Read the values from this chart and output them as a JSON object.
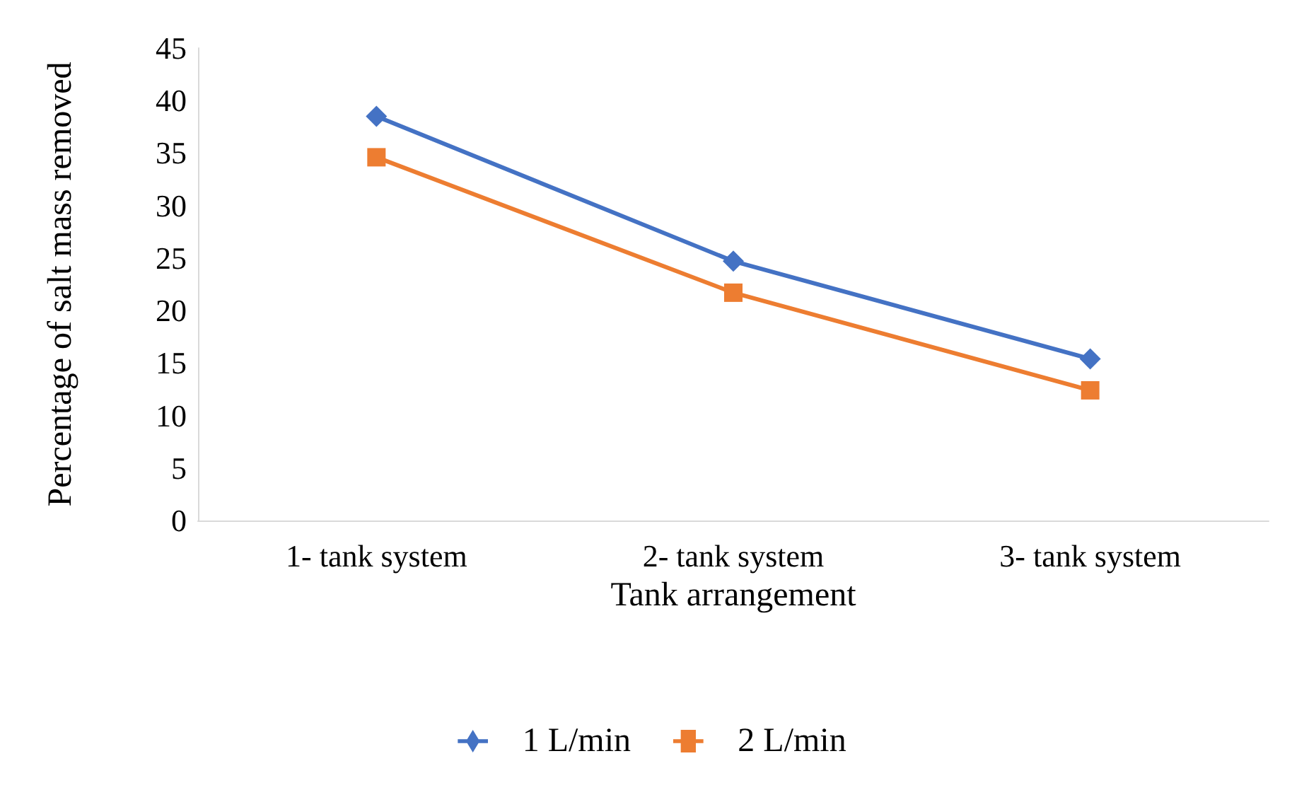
{
  "chart_data": {
    "type": "line",
    "xlabel": "Tank arrangement",
    "ylabel": "Percentage of salt mass removed",
    "categories": [
      "1- tank system",
      "2- tank system",
      "3- tank system"
    ],
    "series": [
      {
        "name": "1 L/min",
        "color": "#4472c4",
        "marker": "diamond",
        "values": [
          38.5,
          24.7,
          15.4
        ]
      },
      {
        "name": "2 L/min",
        "color": "#ed7d31",
        "marker": "square",
        "values": [
          34.6,
          21.7,
          12.4
        ]
      }
    ],
    "ylim": [
      0,
      45
    ],
    "yticks": [
      0,
      5,
      10,
      15,
      20,
      25,
      30,
      35,
      40,
      45
    ],
    "grid": false,
    "legend": "bottom",
    "line_style": "solid"
  }
}
